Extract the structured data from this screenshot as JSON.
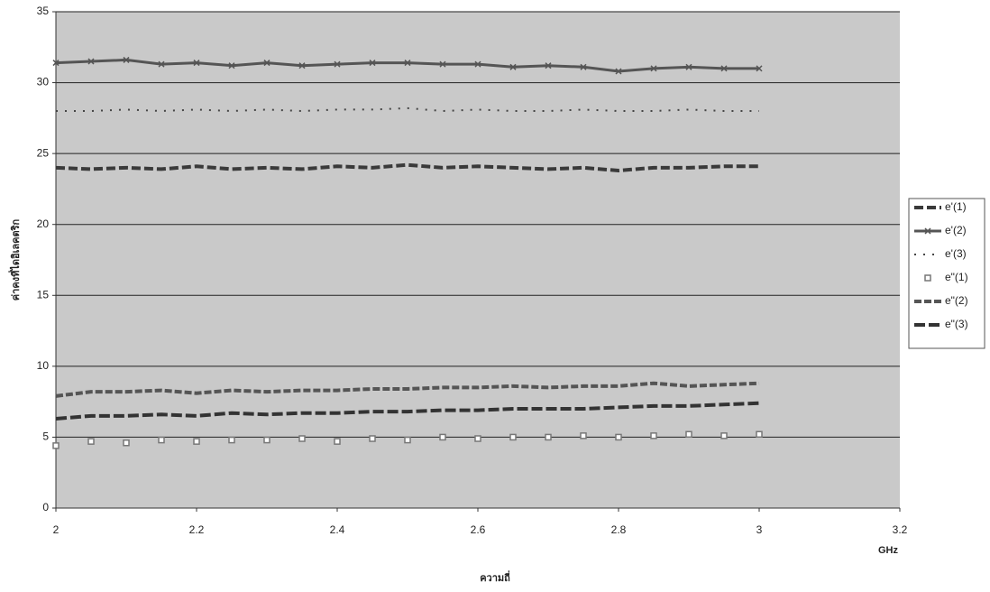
{
  "chart_data": {
    "type": "line",
    "y_label": "ค่าคงที่ไดอิเลคตริก",
    "x_label": "ความถี่",
    "x_unit": "GHz",
    "x": [
      2,
      2.05,
      2.1,
      2.15,
      2.2,
      2.25,
      2.3,
      2.35,
      2.4,
      2.45,
      2.5,
      2.55,
      2.6,
      2.65,
      2.7,
      2.75,
      2.8,
      2.85,
      2.9,
      2.95,
      3
    ],
    "series": [
      {
        "name": "e'(1)",
        "color": "#3a3a3a",
        "dash": "10,4",
        "marker": "none",
        "width": 4,
        "values": [
          24,
          23.9,
          24,
          23.9,
          24.1,
          23.9,
          24,
          23.9,
          24.1,
          24,
          24.2,
          24,
          24.1,
          24,
          23.9,
          24,
          23.8,
          24,
          24,
          24.1,
          24.1
        ]
      },
      {
        "name": "e'(2)",
        "color": "#555555",
        "dash": "none",
        "marker": "x",
        "width": 3,
        "values": [
          31.4,
          31.5,
          31.6,
          31.3,
          31.4,
          31.2,
          31.4,
          31.2,
          31.3,
          31.4,
          31.4,
          31.3,
          31.3,
          31.1,
          31.2,
          31.1,
          30.8,
          31,
          31.1,
          31,
          31
        ]
      },
      {
        "name": "e'(3)",
        "color": "#444444",
        "dash": "2,8",
        "marker": "none",
        "width": 2,
        "values": [
          28,
          28,
          28.1,
          28,
          28.1,
          28,
          28.1,
          28,
          28.1,
          28.1,
          28.2,
          28,
          28.1,
          28,
          28,
          28.1,
          28,
          28,
          28.1,
          28,
          28
        ]
      },
      {
        "name": "e\"(1)",
        "color": "#777777",
        "dash": "none",
        "marker": "square",
        "width": 0,
        "values": [
          4.4,
          4.7,
          4.6,
          4.8,
          4.7,
          4.8,
          4.8,
          4.9,
          4.7,
          4.9,
          4.8,
          5,
          4.9,
          5,
          5,
          5.1,
          5,
          5.1,
          5.2,
          5.1,
          5.2
        ]
      },
      {
        "name": "e\"(2)",
        "color": "#555555",
        "dash": "8,3",
        "marker": "none",
        "width": 4,
        "values": [
          7.9,
          8.2,
          8.2,
          8.3,
          8.1,
          8.3,
          8.2,
          8.3,
          8.3,
          8.4,
          8.4,
          8.5,
          8.5,
          8.6,
          8.5,
          8.6,
          8.6,
          8.8,
          8.6,
          8.7,
          8.8
        ]
      },
      {
        "name": "e\"(3)",
        "color": "#333333",
        "dash": "12,4",
        "marker": "none",
        "width": 4,
        "values": [
          6.3,
          6.5,
          6.5,
          6.6,
          6.5,
          6.7,
          6.6,
          6.7,
          6.7,
          6.8,
          6.8,
          6.9,
          6.9,
          7,
          7,
          7,
          7.1,
          7.2,
          7.2,
          7.3,
          7.4
        ]
      }
    ],
    "xlim": [
      2,
      3.2
    ],
    "xticks": [
      2,
      2.2,
      2.4,
      2.6,
      2.8,
      3,
      3.2
    ],
    "ylim": [
      0,
      35
    ],
    "yticks": [
      0,
      5,
      10,
      15,
      20,
      25,
      30,
      35
    ],
    "grid": true,
    "legend": "right"
  }
}
